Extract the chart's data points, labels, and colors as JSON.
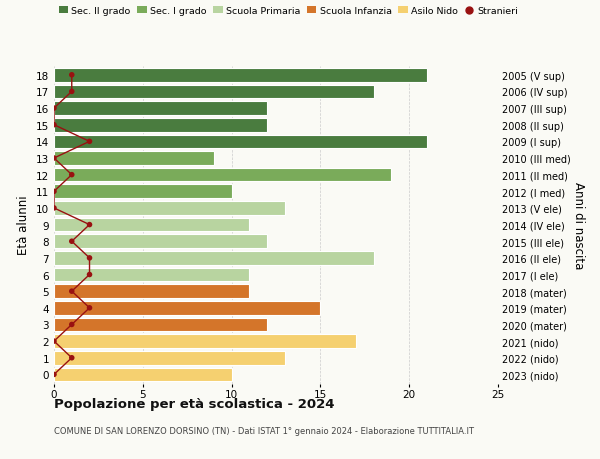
{
  "ages": [
    18,
    17,
    16,
    15,
    14,
    13,
    12,
    11,
    10,
    9,
    8,
    7,
    6,
    5,
    4,
    3,
    2,
    1,
    0
  ],
  "years": [
    "2005 (V sup)",
    "2006 (IV sup)",
    "2007 (III sup)",
    "2008 (II sup)",
    "2009 (I sup)",
    "2010 (III med)",
    "2011 (II med)",
    "2012 (I med)",
    "2013 (V ele)",
    "2014 (IV ele)",
    "2015 (III ele)",
    "2016 (II ele)",
    "2017 (I ele)",
    "2018 (mater)",
    "2019 (mater)",
    "2020 (mater)",
    "2021 (nido)",
    "2022 (nido)",
    "2023 (nido)"
  ],
  "values": [
    21,
    18,
    12,
    12,
    21,
    9,
    19,
    10,
    13,
    11,
    12,
    18,
    11,
    11,
    15,
    12,
    17,
    13,
    10
  ],
  "stranieri": [
    1,
    1,
    0,
    0,
    2,
    0,
    1,
    0,
    0,
    2,
    1,
    2,
    2,
    1,
    2,
    1,
    0,
    1,
    0
  ],
  "bar_colors": [
    "#4a7c3f",
    "#4a7c3f",
    "#4a7c3f",
    "#4a7c3f",
    "#4a7c3f",
    "#7aab5a",
    "#7aab5a",
    "#7aab5a",
    "#b8d4a0",
    "#b8d4a0",
    "#b8d4a0",
    "#b8d4a0",
    "#b8d4a0",
    "#d4752a",
    "#d4752a",
    "#d4752a",
    "#f5d070",
    "#f5d070",
    "#f5d070"
  ],
  "stranieri_color": "#991111",
  "legend_labels": [
    "Sec. II grado",
    "Sec. I grado",
    "Scuola Primaria",
    "Scuola Infanzia",
    "Asilo Nido",
    "Stranieri"
  ],
  "legend_colors": [
    "#4a7c3f",
    "#7aab5a",
    "#b8d4a0",
    "#d4752a",
    "#f5d070",
    "#991111"
  ],
  "title": "Popolazione per età scolastica - 2024",
  "subtitle": "COMUNE DI SAN LORENZO DORSINO (TN) - Dati ISTAT 1° gennaio 2024 - Elaborazione TUTTITALIA.IT",
  "ylabel_left": "Età alunni",
  "ylabel_right": "Anni di nascita",
  "xlim": [
    0,
    25
  ],
  "bg_color": "#fafaf5"
}
